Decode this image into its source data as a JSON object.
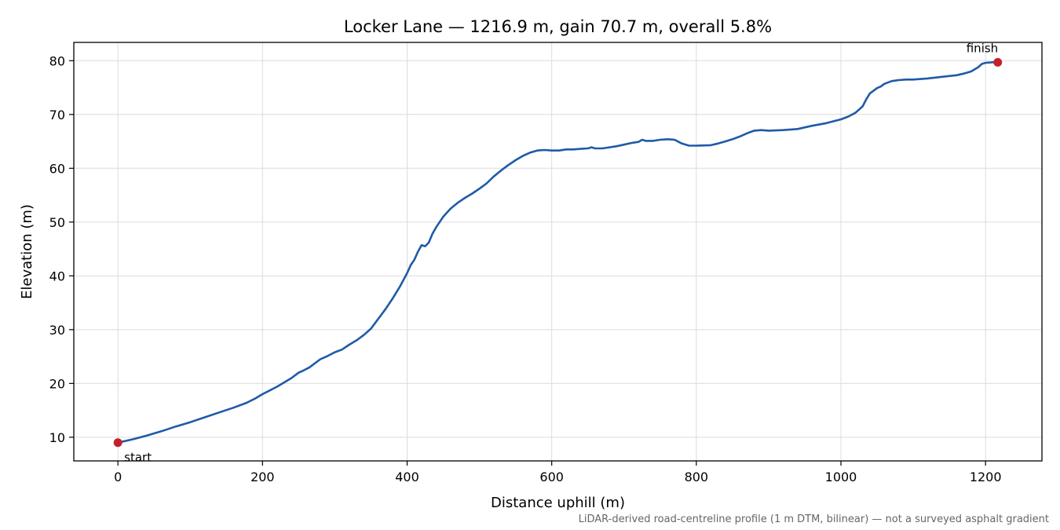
{
  "chart_data": {
    "type": "line",
    "title": "Locker Lane — 1216.9 m, gain 70.7 m, overall 5.8%",
    "xlabel": "Distance uphill (m)",
    "ylabel": "Elevation (m)",
    "xlim": [
      -61,
      1278
    ],
    "ylim": [
      5.6,
      83.4
    ],
    "xticks": [
      0,
      200,
      400,
      600,
      800,
      1000,
      1200
    ],
    "yticks": [
      10,
      20,
      30,
      40,
      50,
      60,
      70,
      80
    ],
    "grid": true,
    "footnote": "LiDAR-derived road-centreline profile (1 m DTM, bilinear) — not a surveyed asphalt gradient",
    "series": [
      {
        "color": "#1f5aa8",
        "x": [
          0,
          20,
          40,
          60,
          80,
          100,
          120,
          140,
          160,
          178,
          190,
          200,
          210,
          220,
          230,
          240,
          250,
          255,
          265,
          280,
          290,
          300,
          310,
          320,
          330,
          340,
          350,
          360,
          370,
          380,
          390,
          400,
          405,
          410,
          415,
          420,
          425,
          430,
          435,
          440,
          445,
          450,
          460,
          470,
          480,
          490,
          500,
          510,
          520,
          530,
          540,
          550,
          560,
          570,
          580,
          590,
          600,
          610,
          620,
          630,
          640,
          650,
          655,
          660,
          670,
          680,
          690,
          700,
          710,
          720,
          725,
          730,
          740,
          750,
          760,
          770,
          780,
          790,
          800,
          820,
          830,
          840,
          850,
          860,
          870,
          880,
          890,
          900,
          920,
          940,
          960,
          980,
          1000,
          1010,
          1020,
          1030,
          1035,
          1040,
          1050,
          1055,
          1060,
          1070,
          1080,
          1090,
          1100,
          1120,
          1140,
          1160,
          1170,
          1180,
          1190,
          1195,
          1200,
          1210,
          1216.9
        ],
        "y": [
          9.0,
          9.6,
          10.3,
          11.1,
          12.0,
          12.8,
          13.7,
          14.6,
          15.5,
          16.4,
          17.2,
          18.0,
          18.7,
          19.4,
          20.2,
          21.0,
          22.0,
          22.3,
          23.0,
          24.5,
          25.1,
          25.8,
          26.3,
          27.2,
          28.0,
          29.0,
          30.2,
          32.0,
          33.8,
          35.8,
          38.0,
          40.5,
          42.0,
          43.0,
          44.5,
          45.7,
          45.5,
          46.2,
          47.8,
          49.0,
          50.0,
          51.0,
          52.5,
          53.6,
          54.5,
          55.3,
          56.2,
          57.2,
          58.5,
          59.6,
          60.6,
          61.5,
          62.3,
          62.9,
          63.3,
          63.4,
          63.3,
          63.3,
          63.5,
          63.5,
          63.6,
          63.7,
          63.9,
          63.7,
          63.7,
          63.9,
          64.1,
          64.4,
          64.7,
          64.9,
          65.3,
          65.1,
          65.1,
          65.3,
          65.4,
          65.3,
          64.6,
          64.2,
          64.2,
          64.3,
          64.6,
          65.0,
          65.4,
          65.9,
          66.5,
          67.0,
          67.1,
          67.0,
          67.1,
          67.3,
          67.9,
          68.4,
          69.1,
          69.6,
          70.3,
          71.5,
          72.8,
          73.9,
          74.9,
          75.2,
          75.7,
          76.2,
          76.4,
          76.5,
          76.5,
          76.7,
          77.0,
          77.3,
          77.6,
          78.0,
          78.8,
          79.4,
          79.6,
          79.7,
          79.7
        ]
      }
    ],
    "markers": [
      {
        "x": 0,
        "y": 9.0,
        "label": "start",
        "color": "#c4202b"
      },
      {
        "x": 1216.9,
        "y": 79.7,
        "label": "finish",
        "color": "#c4202b"
      }
    ]
  }
}
